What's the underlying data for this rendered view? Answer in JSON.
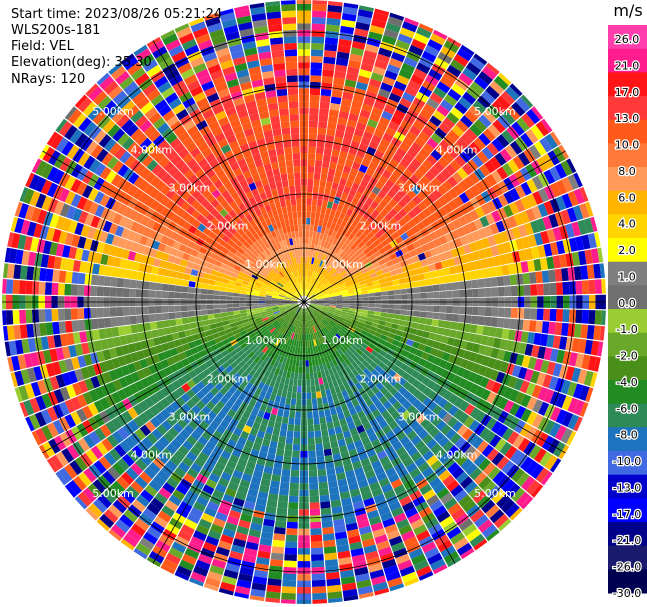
{
  "header": {
    "start_time": "Start time: 2023/08/26 05:21:24",
    "instrument": "WLS200s-181",
    "field": "Field: VEL",
    "elevation": "Elevation(deg): 35.30",
    "nrays": "NRays: 120"
  },
  "colorbar": {
    "unit": "m/s",
    "ticks": [
      "26.0",
      "21.0",
      "17.0",
      "13.0",
      "10.0",
      "8.0",
      "6.0",
      "4.0",
      "2.0",
      "1.0",
      "0.0",
      "-1.0",
      "-2.0",
      "-4.0",
      "-6.0",
      "-8.0",
      "-10.0",
      "-13.0",
      "-17.0",
      "-21.0",
      "-26.0",
      "-30.0"
    ],
    "colors": [
      "#ff40ac",
      "#ff1c8c",
      "#ff1515",
      "#ff3838",
      "#ff5a1a",
      "#ff7a3a",
      "#ff9a5a",
      "#ffb400",
      "#ffd400",
      "#ffff00",
      "#7f7f7f",
      "#6f6f6f",
      "#9acd32",
      "#6aa82a",
      "#4a8f1a",
      "#228b22",
      "#2e8b57",
      "#1e73be",
      "#4169e1",
      "#0000cd",
      "#0000ff",
      "#00008b",
      "#1a1a6e",
      "#000050"
    ]
  },
  "chart_data": {
    "type": "ppi",
    "field": "VEL",
    "units": "m/s",
    "elevation_deg": 35.3,
    "n_rays": 120,
    "ring_labels": [
      "1.00km",
      "2.00km",
      "3.00km",
      "4.00km",
      "5.00km"
    ],
    "ring_ranges_km": [
      1,
      2,
      3,
      4,
      5
    ],
    "color_range": [
      -30,
      26
    ],
    "velocity_pattern": {
      "north_sector_ms": 13,
      "near_north_ms": 1,
      "east_west_axis_ms": 0,
      "near_south_ms": -4,
      "south_sector_ms": -10,
      "noise_beyond_km": 3.5
    }
  }
}
